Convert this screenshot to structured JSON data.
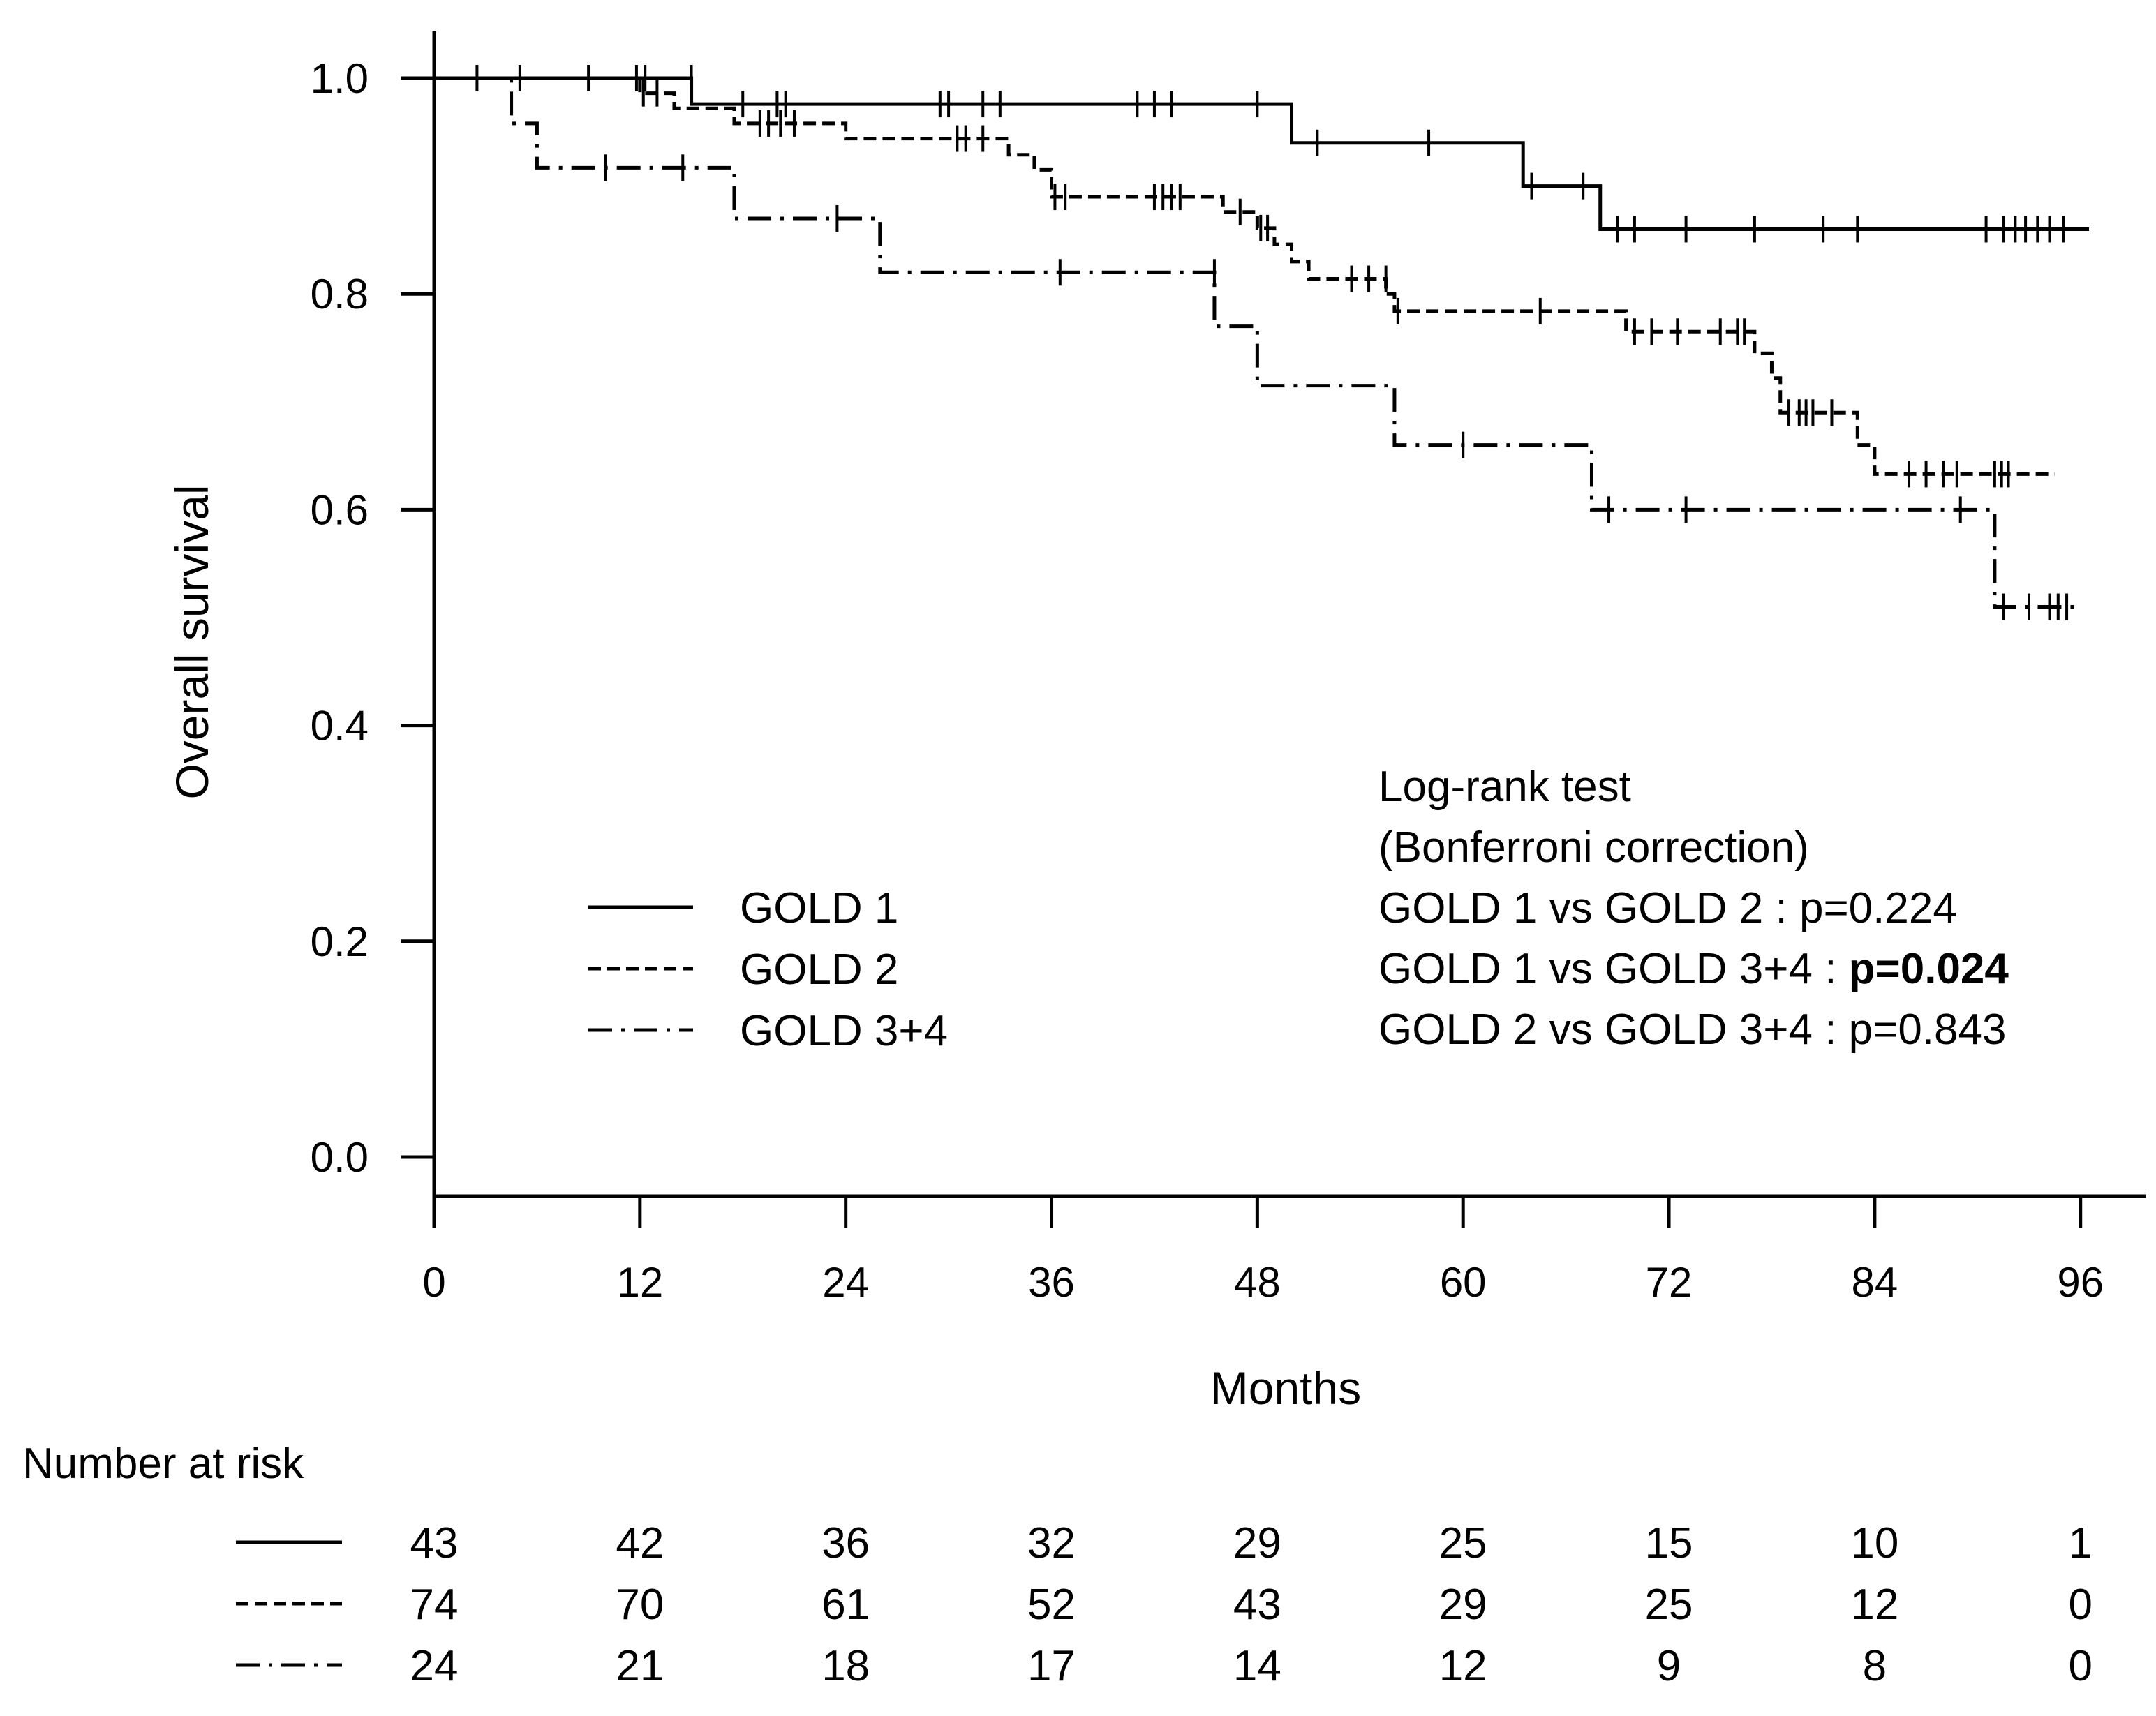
{
  "chart_data": {
    "type": "line",
    "subtype": "kaplan-meier",
    "title": "",
    "xlabel": "Months",
    "ylabel": "Overall survival",
    "xlim": [
      0,
      100
    ],
    "ylim": [
      0,
      1.0
    ],
    "x_ticks": [
      0,
      12,
      24,
      36,
      48,
      60,
      72,
      84,
      96
    ],
    "y_ticks": [
      0.0,
      0.2,
      0.4,
      0.6,
      0.8,
      1.0
    ],
    "y_tick_labels": [
      "0.0",
      "0.2",
      "0.4",
      "0.6",
      "0.8",
      "1.0"
    ],
    "grid": false,
    "legend_position": "center-left",
    "series": [
      {
        "name": "GOLD 1",
        "line_style": "solid",
        "steps": [
          [
            0,
            1.0
          ],
          [
            12,
            1.0
          ],
          [
            15,
            0.976
          ],
          [
            50,
            0.976
          ],
          [
            50,
            0.94
          ],
          [
            63.5,
            0.94
          ],
          [
            63.5,
            0.9
          ],
          [
            68,
            0.9
          ],
          [
            68,
            0.86
          ],
          [
            96.5,
            0.86
          ]
        ],
        "censored": [
          [
            2.5,
            1.0
          ],
          [
            5,
            1.0
          ],
          [
            9,
            1.0
          ],
          [
            11.8,
            1.0
          ],
          [
            12.3,
            1.0
          ],
          [
            15,
            1.0
          ],
          [
            18,
            0.976
          ],
          [
            20,
            0.976
          ],
          [
            20.5,
            0.976
          ],
          [
            29.5,
            0.976
          ],
          [
            30,
            0.976
          ],
          [
            32,
            0.976
          ],
          [
            33,
            0.976
          ],
          [
            41,
            0.976
          ],
          [
            42,
            0.976
          ],
          [
            43,
            0.976
          ],
          [
            48,
            0.976
          ],
          [
            51.5,
            0.94
          ],
          [
            58,
            0.94
          ],
          [
            64,
            0.9
          ],
          [
            67,
            0.9
          ],
          [
            69,
            0.86
          ],
          [
            70,
            0.86
          ],
          [
            73,
            0.86
          ],
          [
            77,
            0.86
          ],
          [
            81,
            0.86
          ],
          [
            83,
            0.86
          ],
          [
            90.5,
            0.86
          ],
          [
            91.5,
            0.86
          ],
          [
            92.2,
            0.86
          ],
          [
            92.8,
            0.86
          ],
          [
            93.5,
            0.86
          ],
          [
            94.2,
            0.86
          ],
          [
            95,
            0.86
          ]
        ]
      },
      {
        "name": "GOLD 2",
        "line_style": "dashed",
        "steps": [
          [
            0,
            1.0
          ],
          [
            12,
            1.0
          ],
          [
            12,
            0.986
          ],
          [
            14,
            0.986
          ],
          [
            14,
            0.972
          ],
          [
            17.5,
            0.972
          ],
          [
            17.5,
            0.958
          ],
          [
            24,
            0.958
          ],
          [
            24,
            0.944
          ],
          [
            33.5,
            0.944
          ],
          [
            33.5,
            0.929
          ],
          [
            35,
            0.929
          ],
          [
            35,
            0.915
          ],
          [
            36,
            0.915
          ],
          [
            36,
            0.89
          ],
          [
            46,
            0.89
          ],
          [
            46,
            0.876
          ],
          [
            48,
            0.876
          ],
          [
            48,
            0.861
          ],
          [
            49,
            0.861
          ],
          [
            49,
            0.846
          ],
          [
            50,
            0.846
          ],
          [
            50,
            0.83
          ],
          [
            51,
            0.83
          ],
          [
            51,
            0.814
          ],
          [
            55.5,
            0.814
          ],
          [
            55.5,
            0.8
          ],
          [
            56,
            0.8
          ],
          [
            56,
            0.784
          ],
          [
            69.5,
            0.784
          ],
          [
            69.5,
            0.765
          ],
          [
            77,
            0.765
          ],
          [
            77,
            0.745
          ],
          [
            78,
            0.745
          ],
          [
            78,
            0.722
          ],
          [
            78.5,
            0.722
          ],
          [
            78.5,
            0.69
          ],
          [
            83,
            0.69
          ],
          [
            83,
            0.66
          ],
          [
            84,
            0.66
          ],
          [
            84,
            0.633
          ],
          [
            94.5,
            0.633
          ]
        ],
        "censored": [
          [
            12.2,
            0.986
          ],
          [
            13,
            0.986
          ],
          [
            19,
            0.958
          ],
          [
            19.5,
            0.958
          ],
          [
            20.2,
            0.958
          ],
          [
            21,
            0.958
          ],
          [
            30.5,
            0.944
          ],
          [
            31,
            0.944
          ],
          [
            32,
            0.944
          ],
          [
            36.2,
            0.89
          ],
          [
            36.8,
            0.89
          ],
          [
            42,
            0.89
          ],
          [
            42.5,
            0.89
          ],
          [
            43,
            0.89
          ],
          [
            43.5,
            0.89
          ],
          [
            47,
            0.876
          ],
          [
            48.2,
            0.861
          ],
          [
            48.6,
            0.861
          ],
          [
            53.5,
            0.814
          ],
          [
            54.5,
            0.814
          ],
          [
            55.5,
            0.814
          ],
          [
            56.2,
            0.784
          ],
          [
            64.5,
            0.784
          ],
          [
            70,
            0.765
          ],
          [
            71,
            0.765
          ],
          [
            72.5,
            0.765
          ],
          [
            75,
            0.765
          ],
          [
            76,
            0.765
          ],
          [
            76.4,
            0.765
          ],
          [
            79,
            0.69
          ],
          [
            79.6,
            0.69
          ],
          [
            80,
            0.69
          ],
          [
            80.4,
            0.69
          ],
          [
            81.5,
            0.69
          ],
          [
            86,
            0.633
          ],
          [
            87,
            0.633
          ],
          [
            88,
            0.633
          ],
          [
            88.8,
            0.633
          ],
          [
            91,
            0.633
          ],
          [
            91.4,
            0.633
          ],
          [
            91.8,
            0.633
          ]
        ]
      },
      {
        "name": "GOLD 3+4",
        "line_style": "dash-dot",
        "steps": [
          [
            0,
            1.0
          ],
          [
            4.5,
            1.0
          ],
          [
            4.5,
            0.958
          ],
          [
            6,
            0.958
          ],
          [
            6,
            0.917
          ],
          [
            17.5,
            0.917
          ],
          [
            17.5,
            0.87
          ],
          [
            26,
            0.87
          ],
          [
            26,
            0.82
          ],
          [
            45.5,
            0.82
          ],
          [
            45.5,
            0.77
          ],
          [
            48,
            0.77
          ],
          [
            48,
            0.715
          ],
          [
            56,
            0.715
          ],
          [
            56,
            0.66
          ],
          [
            67.5,
            0.66
          ],
          [
            67.5,
            0.6
          ],
          [
            91,
            0.6
          ],
          [
            91,
            0.51
          ],
          [
            96,
            0.51
          ]
        ],
        "censored": [
          [
            10,
            0.917
          ],
          [
            14.5,
            0.917
          ],
          [
            23.5,
            0.87
          ],
          [
            36.5,
            0.82
          ],
          [
            45.5,
            0.82
          ],
          [
            60,
            0.66
          ],
          [
            68.5,
            0.6
          ],
          [
            73,
            0.6
          ],
          [
            89,
            0.6
          ],
          [
            91.5,
            0.51
          ],
          [
            93,
            0.51
          ],
          [
            94.2,
            0.51
          ],
          [
            94.7,
            0.51
          ],
          [
            95.2,
            0.51
          ]
        ]
      }
    ],
    "number_at_risk": {
      "title": "Number at risk",
      "times": [
        0,
        12,
        24,
        36,
        48,
        60,
        72,
        84,
        96
      ],
      "rows": [
        {
          "series": "GOLD 1",
          "counts": [
            43,
            42,
            36,
            32,
            29,
            25,
            15,
            10,
            1
          ]
        },
        {
          "series": "GOLD 2",
          "counts": [
            74,
            70,
            61,
            52,
            43,
            29,
            25,
            12,
            0
          ]
        },
        {
          "series": "GOLD 3+4",
          "counts": [
            24,
            21,
            18,
            17,
            14,
            12,
            9,
            8,
            0
          ]
        }
      ]
    },
    "annotation": {
      "lines": [
        {
          "text": "Log-rank test"
        },
        {
          "text": "(Bonferroni correction)"
        },
        {
          "text": "GOLD 1 vs GOLD 2 : p=0.224"
        },
        {
          "text": "GOLD 1 vs GOLD 3+4 : ",
          "bold_text": "p=0.024"
        },
        {
          "text": "GOLD 2 vs GOLD 3+4 : p=0.843"
        }
      ]
    }
  }
}
